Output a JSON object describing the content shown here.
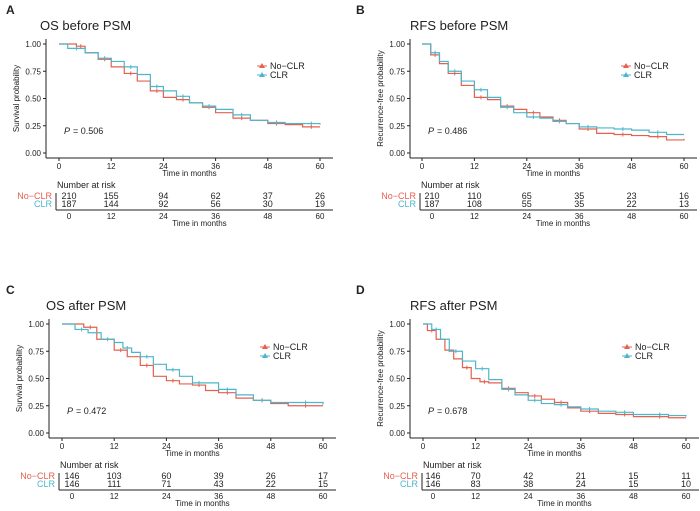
{
  "colors": {
    "No-CLR": "#E5604E",
    "CLR": "#4DB6CC"
  },
  "chart_data": [
    {
      "panel": "A",
      "title": "OS before PSM",
      "type": "line",
      "xlabel": "Time in months",
      "ylabel": "Survival probability",
      "xlim": [
        0,
        60
      ],
      "ylim": [
        0,
        1
      ],
      "xticks": [
        "0",
        "12",
        "24",
        "36",
        "48",
        "60"
      ],
      "yticks": [
        "0.00",
        "0.25",
        "0.50",
        "0.75",
        "1.00"
      ],
      "p_label": "P",
      "p_value": "= 0.506",
      "legend": [
        "No−CLR",
        "CLR"
      ],
      "legend_position": "right",
      "series": [
        {
          "name": "No−CLR",
          "x": [
            0,
            4,
            6,
            9,
            12,
            15,
            18,
            21,
            24,
            27,
            30,
            33,
            36,
            40,
            44,
            48,
            52,
            56,
            60
          ],
          "y": [
            1.0,
            0.98,
            0.92,
            0.86,
            0.79,
            0.73,
            0.66,
            0.57,
            0.51,
            0.49,
            0.46,
            0.42,
            0.37,
            0.32,
            0.3,
            0.27,
            0.26,
            0.24,
            0.24
          ]
        },
        {
          "name": "CLR",
          "x": [
            0,
            2,
            6,
            9,
            12,
            15,
            18,
            21,
            24,
            27,
            30,
            33,
            36,
            40,
            44,
            48,
            52,
            56,
            60
          ],
          "y": [
            1.0,
            0.96,
            0.92,
            0.87,
            0.84,
            0.79,
            0.72,
            0.61,
            0.57,
            0.52,
            0.46,
            0.43,
            0.4,
            0.35,
            0.3,
            0.28,
            0.27,
            0.27,
            0.26
          ]
        }
      ],
      "risk_table": {
        "title": "Number at risk",
        "xlabel": "Time in months",
        "rows": [
          {
            "name": "No−CLR",
            "values": [
              "210",
              "155",
              "94",
              "62",
              "37",
              "26"
            ]
          },
          {
            "name": "CLR",
            "values": [
              "187",
              "144",
              "92",
              "56",
              "30",
              "19"
            ]
          }
        ]
      }
    },
    {
      "panel": "B",
      "title": "RFS before PSM",
      "type": "line",
      "xlabel": "Time in months",
      "ylabel": "Recurrence-free probability",
      "xlim": [
        0,
        60
      ],
      "ylim": [
        0,
        1
      ],
      "xticks": [
        "0",
        "12",
        "24",
        "36",
        "48",
        "60"
      ],
      "yticks": [
        "0.00",
        "0.25",
        "0.50",
        "0.75",
        "1.00"
      ],
      "p_label": "P",
      "p_value": "= 0.486",
      "legend": [
        "No−CLR",
        "CLR"
      ],
      "legend_position": "right",
      "series": [
        {
          "name": "No−CLR",
          "x": [
            0,
            2,
            4,
            6,
            9,
            12,
            15,
            18,
            21,
            24,
            27,
            30,
            33,
            36,
            40,
            44,
            48,
            52,
            56,
            60
          ],
          "y": [
            1,
            0.9,
            0.82,
            0.73,
            0.62,
            0.51,
            0.49,
            0.43,
            0.4,
            0.37,
            0.33,
            0.3,
            0.27,
            0.22,
            0.18,
            0.17,
            0.16,
            0.15,
            0.12,
            0.13
          ]
        },
        {
          "name": "CLR",
          "x": [
            0,
            2,
            4,
            6,
            9,
            12,
            15,
            18,
            21,
            24,
            27,
            30,
            33,
            36,
            40,
            44,
            48,
            52,
            56,
            60
          ],
          "y": [
            1,
            0.92,
            0.84,
            0.75,
            0.66,
            0.58,
            0.51,
            0.42,
            0.37,
            0.33,
            0.32,
            0.29,
            0.27,
            0.24,
            0.23,
            0.22,
            0.21,
            0.19,
            0.17,
            0.17
          ]
        }
      ],
      "risk_table": {
        "title": "Number at risk",
        "xlabel": "Time in months",
        "rows": [
          {
            "name": "No−CLR",
            "values": [
              "210",
              "110",
              "65",
              "35",
              "23",
              "16"
            ]
          },
          {
            "name": "CLR",
            "values": [
              "187",
              "108",
              "55",
              "35",
              "22",
              "13"
            ]
          }
        ]
      }
    },
    {
      "panel": "C",
      "title": "OS after PSM",
      "type": "line",
      "xlabel": "Time in months",
      "ylabel": "Survival probability",
      "xlim": [
        0,
        60
      ],
      "ylim": [
        0,
        1
      ],
      "xticks": [
        "0",
        "12",
        "24",
        "36",
        "48",
        "60"
      ],
      "yticks": [
        "0.00",
        "0.25",
        "0.50",
        "0.75",
        "1.00"
      ],
      "p_label": "P",
      "p_value": "= 0.472",
      "legend": [
        "No−CLR",
        "CLR"
      ],
      "legend_position": "right",
      "series": [
        {
          "name": "No−CLR",
          "x": [
            0,
            5,
            8,
            12,
            15,
            18,
            21,
            24,
            27,
            30,
            33,
            36,
            40,
            44,
            48,
            52,
            60
          ],
          "y": [
            1,
            0.97,
            0.86,
            0.76,
            0.7,
            0.62,
            0.52,
            0.48,
            0.45,
            0.44,
            0.39,
            0.37,
            0.32,
            0.3,
            0.27,
            0.25,
            0.25
          ]
        },
        {
          "name": "CLR",
          "x": [
            0,
            3,
            6,
            9,
            12,
            14,
            16,
            18,
            21,
            24,
            27,
            30,
            33,
            36,
            40,
            44,
            48,
            52,
            60
          ],
          "y": [
            1,
            0.95,
            0.92,
            0.86,
            0.83,
            0.78,
            0.74,
            0.7,
            0.63,
            0.58,
            0.52,
            0.46,
            0.46,
            0.4,
            0.35,
            0.3,
            0.28,
            0.28,
            0.26
          ]
        }
      ],
      "risk_table": {
        "title": "Number at risk",
        "xlabel": "Time in months",
        "rows": [
          {
            "name": "No−CLR",
            "values": [
              "146",
              "103",
              "60",
              "39",
              "26",
              "17"
            ]
          },
          {
            "name": "CLR",
            "values": [
              "146",
              "111",
              "71",
              "43",
              "22",
              "15"
            ]
          }
        ]
      }
    },
    {
      "panel": "D",
      "title": "RFS after PSM",
      "type": "line",
      "xlabel": "Time in months",
      "ylabel": "Recurrence-free probability",
      "xlim": [
        0,
        60
      ],
      "ylim": [
        0,
        1
      ],
      "xticks": [
        "0",
        "12",
        "24",
        "36",
        "48",
        "60"
      ],
      "yticks": [
        "0.00",
        "0.25",
        "0.50",
        "0.75",
        "1.00"
      ],
      "p_label": "P",
      "p_value": "= 0.678",
      "legend": [
        "No−CLR",
        "CLR"
      ],
      "legend_position": "right",
      "series": [
        {
          "name": "No−CLR",
          "x": [
            0,
            1,
            3,
            5,
            7,
            9,
            11,
            13,
            15,
            18,
            21,
            24,
            27,
            30,
            33,
            36,
            40,
            44,
            48,
            52,
            56,
            60
          ],
          "y": [
            1,
            0.94,
            0.86,
            0.76,
            0.68,
            0.6,
            0.5,
            0.47,
            0.46,
            0.41,
            0.37,
            0.34,
            0.31,
            0.28,
            0.23,
            0.2,
            0.18,
            0.17,
            0.15,
            0.15,
            0.14,
            0.14
          ]
        },
        {
          "name": "CLR",
          "x": [
            0,
            2,
            4,
            6,
            9,
            12,
            15,
            18,
            21,
            24,
            27,
            30,
            33,
            36,
            40,
            44,
            48,
            52,
            56,
            60
          ],
          "y": [
            1,
            0.95,
            0.86,
            0.75,
            0.66,
            0.59,
            0.49,
            0.4,
            0.35,
            0.3,
            0.27,
            0.26,
            0.24,
            0.22,
            0.2,
            0.19,
            0.17,
            0.17,
            0.16,
            0.15
          ]
        }
      ],
      "risk_table": {
        "title": "Number at risk",
        "xlabel": "Time in months",
        "rows": [
          {
            "name": "No−CLR",
            "values": [
              "146",
              "70",
              "42",
              "21",
              "15",
              "11"
            ]
          },
          {
            "name": "CLR",
            "values": [
              "146",
              "83",
              "38",
              "24",
              "15",
              "10"
            ]
          }
        ]
      }
    }
  ]
}
